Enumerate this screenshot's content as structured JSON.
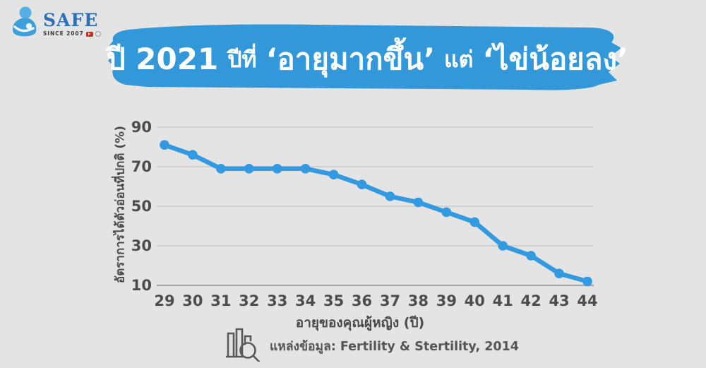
{
  "logo": {
    "name": "SAFE",
    "tagline": "SINCE 2007"
  },
  "title": {
    "year": "ปี 2021",
    "label1": "ปีที่",
    "quote1": "‘อายุมากขึ้น’",
    "label2": "แต่",
    "quote2": "‘ไข่น้อยลง’"
  },
  "chart_data": {
    "type": "line",
    "x": [
      29,
      30,
      31,
      32,
      33,
      34,
      35,
      36,
      37,
      38,
      39,
      40,
      41,
      42,
      43,
      44
    ],
    "series": [
      {
        "name": "อัตราการได้ตัวอ่อนที่ปกติ (%)",
        "values": [
          81,
          76,
          69,
          69,
          69,
          69,
          66,
          61,
          55,
          52,
          47,
          42,
          30,
          25,
          16,
          12
        ]
      }
    ],
    "xlabel": "อายุของคุณผู้หญิง (ปี)",
    "ylabel": "อัตราการได้ตัวอ่อนที่ปกติ (%)",
    "yticks": [
      90,
      70,
      50,
      30,
      10
    ],
    "ylim": [
      5,
      95
    ],
    "xlim": [
      29,
      44
    ],
    "grid": true,
    "legend": false,
    "line_color": "#3399e0",
    "marker": "circle"
  },
  "source": {
    "label": "แหล่งข้อมูล: Fertility & Stertility, 2014"
  },
  "colors": {
    "background": "#e4e4e4",
    "banner": "#3398da",
    "line": "#3399e0",
    "grid": "#c9c9c9",
    "axis": "#a6a6a6",
    "tick_text": "#4d4d4d",
    "title_text": "#ffffff",
    "logo_blue": "#2e6fb5",
    "source_text": "#555555"
  }
}
